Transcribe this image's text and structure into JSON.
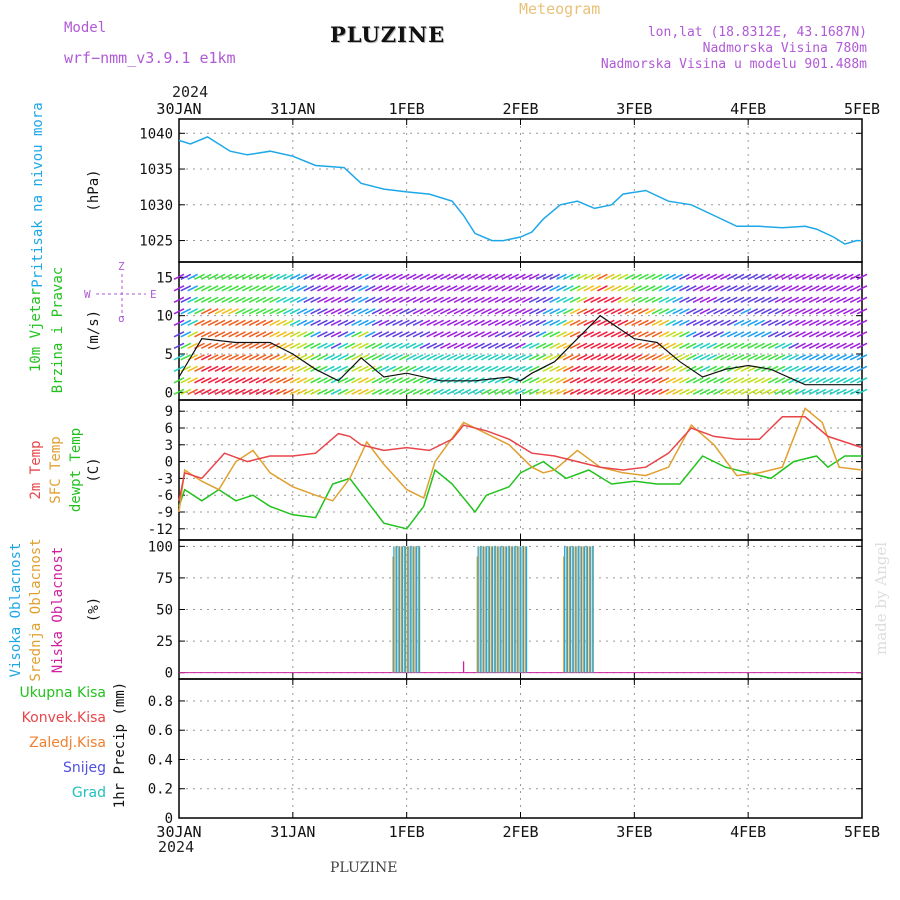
{
  "header": {
    "model_label": "Model",
    "model_name": "wrf−nmm_v3.9.1  e1km",
    "title": "PLUZINE",
    "subtitle": "Meteogram",
    "lonlat": "lon,lat (18.8312E, 43.1687N)",
    "elevation": "Nadmorska Visina 780m",
    "model_elevation": "Nadmorska Visina u modelu 901.488m",
    "year_top": "2024",
    "year_bottom": "2024",
    "footer": "PLUZINE",
    "watermark": "made by Angel"
  },
  "x_axis": {
    "ticks": [
      "30JAN",
      "31JAN",
      "1FEB",
      "2FEB",
      "3FEB",
      "4FEB",
      "5FEB"
    ],
    "range_days": [
      0,
      6
    ]
  },
  "colors": {
    "pressure": "#1ea7e8",
    "temp2m": "#e8454a",
    "sfc": "#e0a030",
    "dewpt": "#22c21e",
    "high": "#1ea7e8",
    "mid": "#e0a030",
    "low": "#d020a0",
    "grid": "#9a9a9a"
  },
  "panels": {
    "pressure": {
      "ylabel_lines": [
        "Pritisak na nivou mora"
      ],
      "unit": "(hPa)",
      "yticks": [
        1025,
        1030,
        1035,
        1040
      ],
      "ylim": [
        1022,
        1042
      ]
    },
    "wind": {
      "ylabel_lines": [
        "10m Vjetar",
        "Brzina i Pravac"
      ],
      "unit": "(m/s)",
      "yticks": [
        0,
        5,
        10,
        15
      ],
      "ylim": [
        -1,
        17
      ],
      "compass": [
        "Z",
        "W",
        "E",
        "σ"
      ]
    },
    "temperature": {
      "ylabel_lines": [
        "2m Temp",
        "SFC Temp",
        "dewpt Temp"
      ],
      "unit": "(C)",
      "yticks": [
        -12,
        -9,
        -6,
        -3,
        0,
        3,
        6,
        9
      ],
      "ylim": [
        -14,
        11
      ]
    },
    "clouds": {
      "ylabel_lines": [
        "Visoka Oblacnost",
        "Srednja Oblacnost",
        "Niska Oblacnost"
      ],
      "unit": "(%)",
      "yticks": [
        0,
        25,
        50,
        75,
        100
      ],
      "ylim": [
        -5,
        105
      ]
    },
    "precip": {
      "legend": [
        "Ukupna Kisa",
        "Konvek.Kisa",
        "Zaledj.Kisa",
        "Snijeg",
        "Grad"
      ],
      "legend_colors": [
        "#22c21e",
        "#e8454a",
        "#f08030",
        "#5050e0",
        "#20c0c0"
      ],
      "unit": "1hr Precip (mm)",
      "yticks": [
        0,
        0.2,
        0.4,
        0.6,
        0.8
      ],
      "ylim": [
        0,
        0.95
      ]
    }
  },
  "chart_data": [
    {
      "type": "line",
      "series": [
        {
          "x": [
            0,
            0.1,
            0.25,
            0.45,
            0.6,
            0.8,
            1.0,
            1.2,
            1.45,
            1.6,
            1.8,
            2.0,
            2.2,
            2.4,
            2.5,
            2.6,
            2.75,
            2.85,
            3.0,
            3.1,
            3.2,
            3.35,
            3.5,
            3.65,
            3.8,
            3.9,
            4.1,
            4.3,
            4.5,
            4.7,
            4.9,
            5.1,
            5.3,
            5.5,
            5.6,
            5.75,
            5.85,
            5.95,
            6.0
          ],
          "values": [
            1039,
            1038.5,
            1039.5,
            1037.5,
            1037,
            1037.5,
            1036.8,
            1035.5,
            1035.2,
            1033,
            1032.2,
            1031.8,
            1031.5,
            1030.5,
            1028.5,
            1026,
            1025,
            1025,
            1025.5,
            1026.2,
            1028,
            1030,
            1030.5,
            1029.5,
            1030,
            1031.5,
            1032,
            1030.5,
            1030,
            1028.5,
            1027,
            1027,
            1026.8,
            1027,
            1026.6,
            1025.5,
            1024.5,
            1025,
            1025
          ]
        }
      ]
    },
    {
      "type": "line",
      "series": [
        {
          "name": "10m wind speed",
          "x": [
            0,
            0.2,
            0.5,
            0.8,
            1.0,
            1.2,
            1.4,
            1.6,
            1.8,
            2.0,
            2.3,
            2.6,
            2.9,
            3.0,
            3.1,
            3.3,
            3.5,
            3.7,
            4.0,
            4.2,
            4.4,
            4.6,
            4.8,
            5.0,
            5.2,
            5.5,
            5.8,
            6.0
          ],
          "values": [
            2,
            7,
            6.5,
            6.5,
            5,
            3,
            1.5,
            4.5,
            2,
            2.5,
            1.5,
            1.5,
            2,
            1.5,
            2.5,
            4,
            7,
            10,
            7,
            6.5,
            4,
            2,
            3,
            3.5,
            3,
            1,
            1,
            1
          ]
        }
      ]
    },
    {
      "type": "line",
      "series": [
        {
          "x": [
            0,
            0.05,
            0.2,
            0.4,
            0.6,
            0.8,
            1.0,
            1.2,
            1.4,
            1.5,
            1.6,
            1.8,
            2.0,
            2.2,
            2.4,
            2.5,
            2.7,
            2.9,
            3.1,
            3.3,
            3.5,
            3.7,
            3.9,
            4.1,
            4.3,
            4.5,
            4.7,
            4.9,
            5.1,
            5.3,
            5.5,
            5.7,
            6.0
          ],
          "values": [
            -7,
            -2,
            -3,
            1.5,
            0,
            1,
            1,
            1.5,
            5,
            4.5,
            3,
            2,
            2.5,
            2,
            4,
            6.5,
            5.5,
            4,
            1.5,
            1,
            0,
            -1,
            -1.5,
            -1,
            1.5,
            6,
            4.5,
            4,
            4,
            8,
            8,
            4.5,
            2.5
          ]
        },
        {
          "x": [
            0,
            0.05,
            0.2,
            0.35,
            0.5,
            0.65,
            0.8,
            1.0,
            1.2,
            1.35,
            1.5,
            1.65,
            1.8,
            2.0,
            2.15,
            2.25,
            2.5,
            2.7,
            2.9,
            3.1,
            3.2,
            3.3,
            3.5,
            3.7,
            3.9,
            4.1,
            4.3,
            4.5,
            4.7,
            4.9,
            5.1,
            5.3,
            5.5,
            5.65,
            5.8,
            6.0
          ],
          "values": [
            -9,
            -1.5,
            -3.5,
            -5,
            0,
            2,
            -2,
            -4.5,
            -6,
            -7,
            -3,
            3.5,
            -0.5,
            -5,
            -6.5,
            0,
            7,
            5,
            3,
            -1,
            -2,
            -1.5,
            2,
            -1,
            -2,
            -2.5,
            -1,
            6.5,
            3,
            -2.5,
            -2,
            -1,
            9.5,
            7,
            -1,
            -1.5
          ]
        },
        {
          "x": [
            0,
            0.05,
            0.2,
            0.35,
            0.5,
            0.65,
            0.8,
            1.0,
            1.2,
            1.35,
            1.5,
            1.65,
            1.8,
            2.0,
            2.15,
            2.25,
            2.4,
            2.6,
            2.7,
            2.9,
            3.0,
            3.2,
            3.4,
            3.6,
            3.8,
            4.0,
            4.2,
            4.4,
            4.6,
            4.8,
            5.0,
            5.2,
            5.4,
            5.6,
            5.7,
            5.85,
            6.0
          ],
          "values": [
            -8,
            -5,
            -7,
            -5,
            -7,
            -6,
            -8,
            -9.5,
            -10,
            -4,
            -3,
            -7,
            -11,
            -12,
            -8,
            -1.5,
            -4,
            -9,
            -6,
            -4.5,
            -2,
            0,
            -3,
            -1.5,
            -4,
            -3.5,
            -4,
            -4,
            1,
            -1,
            -2,
            -3,
            0,
            1,
            -1,
            1,
            1
          ]
        }
      ]
    },
    {
      "type": "bar",
      "series": [
        {
          "x": [
            0.0,
            0.95,
            1.1,
            1.5,
            2.5,
            2.75,
            3.05,
            3.75,
            4.0,
            6.0
          ],
          "values": [
            0,
            0,
            0,
            0,
            0,
            0,
            0,
            0,
            0,
            0
          ]
        }
      ]
    },
    {
      "type": "line",
      "series": [
        {
          "x": [
            0,
            6
          ],
          "values": [
            0,
            0
          ]
        }
      ]
    }
  ]
}
